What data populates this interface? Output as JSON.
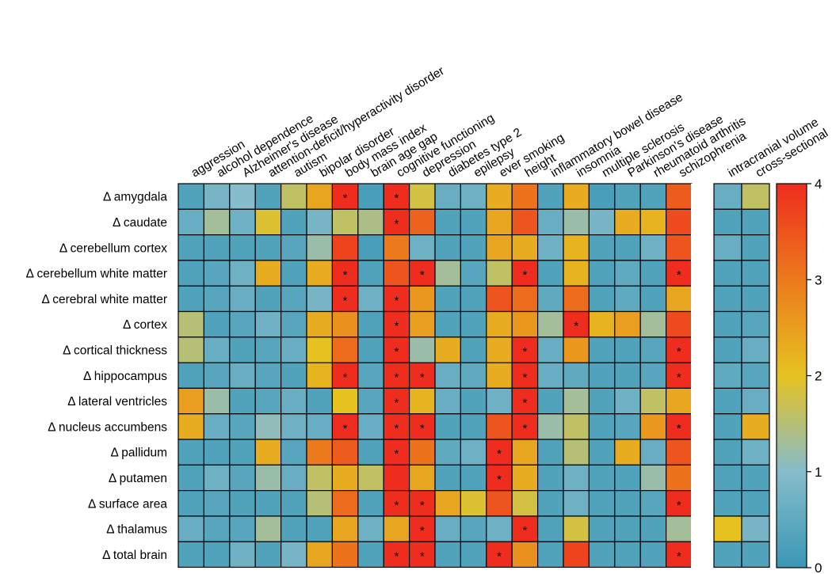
{
  "chart_data": {
    "type": "heatmap",
    "x_labels": [
      "aggression",
      "alcohol dependence",
      "Alzheimer's disease",
      "attention-deficit/hyperactivity disorder",
      "autism",
      "bipolar disorder",
      "body mass index",
      "brain age gap",
      "cognitive functioning",
      "depression",
      "diabetes type 2",
      "epilepsy",
      "ever smoking",
      "height",
      "inflammatory bowel disease",
      "insomnia",
      "multiple sclerosis",
      "Parkinson's disease",
      "rheumatoid arthritis",
      "schizophrenia"
    ],
    "extra_labels": [
      "intracranial volume",
      "cross-sectional"
    ],
    "y_labels": [
      "Δ amygdala",
      "Δ caudate",
      "Δ cerebellum cortex",
      "Δ cerebellum white matter",
      "Δ cerebral white matter",
      "Δ cortex",
      "Δ cortical thickness",
      "Δ hippocampus",
      "Δ lateral ventricles",
      "Δ nucleus accumbens",
      "Δ pallidum",
      "Δ putamen",
      "Δ surface area",
      "Δ thalamus",
      "Δ total brain"
    ],
    "values": [
      [
        0.3,
        0.8,
        1.0,
        0.3,
        1.6,
        2.4,
        4.0,
        0.2,
        4.0,
        1.8,
        0.6,
        0.7,
        2.3,
        3.1,
        0.3,
        2.3,
        0.2,
        0.3,
        0.3,
        3.4
      ],
      [
        0.6,
        1.3,
        0.7,
        1.9,
        0.3,
        0.8,
        1.6,
        1.4,
        4.0,
        3.3,
        0.3,
        0.3,
        2.4,
        3.5,
        0.6,
        1.2,
        0.8,
        2.3,
        2.2,
        3.6
      ],
      [
        0.3,
        0.3,
        0.3,
        0.3,
        0.4,
        1.2,
        3.7,
        0.2,
        3.0,
        0.7,
        0.3,
        0.3,
        2.4,
        2.3,
        0.7,
        2.2,
        0.3,
        0.3,
        0.7,
        3.5
      ],
      [
        0.3,
        0.4,
        0.7,
        2.3,
        0.3,
        2.3,
        4.0,
        0.3,
        3.5,
        4.0,
        1.3,
        0.4,
        1.6,
        4.0,
        0.3,
        2.2,
        0.3,
        0.5,
        0.3,
        4.0
      ],
      [
        0.3,
        0.4,
        0.6,
        0.3,
        0.4,
        0.8,
        4.0,
        0.7,
        4.0,
        2.6,
        0.3,
        0.3,
        3.5,
        3.2,
        0.5,
        3.2,
        0.3,
        0.5,
        0.3,
        2.4
      ],
      [
        1.5,
        0.3,
        0.4,
        0.7,
        0.4,
        2.3,
        2.7,
        0.3,
        4.0,
        2.5,
        0.3,
        0.3,
        2.3,
        2.6,
        1.3,
        4.0,
        2.2,
        2.5,
        1.3,
        3.6
      ],
      [
        1.5,
        0.6,
        0.3,
        0.4,
        0.6,
        2.0,
        3.2,
        0.3,
        4.0,
        1.2,
        2.3,
        0.3,
        2.3,
        4.0,
        0.6,
        2.6,
        0.3,
        0.3,
        0.4,
        4.0
      ],
      [
        0.3,
        0.4,
        0.6,
        0.4,
        0.3,
        2.2,
        4.0,
        0.4,
        4.0,
        4.0,
        0.6,
        0.5,
        2.3,
        4.0,
        0.6,
        0.5,
        0.3,
        0.3,
        0.4,
        4.0
      ],
      [
        2.5,
        1.2,
        0.3,
        0.4,
        0.6,
        0.3,
        2.0,
        0.4,
        4.0,
        2.2,
        0.6,
        0.3,
        0.7,
        4.0,
        0.3,
        1.3,
        0.3,
        0.7,
        1.6,
        2.4
      ],
      [
        2.3,
        0.6,
        0.4,
        1.1,
        0.7,
        0.6,
        4.0,
        0.6,
        4.0,
        4.0,
        0.3,
        0.3,
        3.5,
        4.0,
        1.2,
        1.6,
        0.3,
        0.4,
        2.6,
        4.0
      ],
      [
        0.3,
        0.3,
        0.3,
        2.3,
        0.4,
        3.0,
        3.4,
        0.3,
        4.0,
        3.1,
        0.5,
        0.7,
        4.0,
        2.4,
        0.3,
        1.5,
        0.3,
        2.3,
        0.6,
        3.5
      ],
      [
        0.3,
        0.7,
        0.4,
        1.2,
        0.6,
        1.6,
        2.3,
        1.6,
        4.0,
        2.4,
        0.3,
        0.3,
        4.0,
        2.3,
        0.3,
        0.7,
        0.3,
        0.3,
        1.2,
        3.1
      ],
      [
        0.3,
        0.4,
        0.3,
        0.3,
        0.3,
        1.5,
        3.2,
        0.3,
        4.0,
        4.0,
        2.4,
        1.9,
        3.5,
        1.8,
        0.3,
        0.7,
        0.3,
        0.3,
        0.4,
        4.0
      ],
      [
        0.6,
        0.4,
        0.4,
        1.3,
        0.3,
        0.3,
        2.4,
        0.7,
        2.4,
        4.0,
        0.6,
        0.4,
        0.7,
        4.0,
        0.3,
        1.8,
        0.3,
        0.3,
        0.3,
        1.3
      ],
      [
        0.3,
        0.3,
        0.7,
        0.3,
        0.8,
        2.4,
        3.1,
        0.3,
        4.0,
        4.0,
        0.3,
        0.3,
        4.0,
        2.7,
        0.3,
        3.7,
        0.3,
        0.3,
        0.3,
        4.0
      ]
    ],
    "extra_values": [
      [
        0.6,
        1.6
      ],
      [
        0.3,
        0.3
      ],
      [
        0.6,
        0.3
      ],
      [
        0.3,
        0.3
      ],
      [
        0.3,
        0.3
      ],
      [
        0.3,
        0.4
      ],
      [
        0.3,
        0.6
      ],
      [
        0.5,
        0.4
      ],
      [
        0.3,
        0.6
      ],
      [
        0.3,
        2.3
      ],
      [
        0.3,
        0.7
      ],
      [
        0.3,
        0.3
      ],
      [
        0.3,
        0.3
      ],
      [
        2.0,
        0.8
      ],
      [
        0.3,
        0.3
      ]
    ],
    "significant": [
      [
        0,
        6
      ],
      [
        0,
        8
      ],
      [
        1,
        8
      ],
      [
        3,
        6
      ],
      [
        3,
        9
      ],
      [
        3,
        13
      ],
      [
        3,
        19
      ],
      [
        4,
        6
      ],
      [
        4,
        8
      ],
      [
        5,
        8
      ],
      [
        5,
        15
      ],
      [
        6,
        8
      ],
      [
        6,
        13
      ],
      [
        6,
        19
      ],
      [
        7,
        6
      ],
      [
        7,
        8
      ],
      [
        7,
        9
      ],
      [
        7,
        13
      ],
      [
        7,
        19
      ],
      [
        8,
        8
      ],
      [
        8,
        13
      ],
      [
        9,
        6
      ],
      [
        9,
        8
      ],
      [
        9,
        9
      ],
      [
        9,
        13
      ],
      [
        9,
        19
      ],
      [
        10,
        8
      ],
      [
        10,
        12
      ],
      [
        11,
        12
      ],
      [
        12,
        8
      ],
      [
        12,
        9
      ],
      [
        12,
        19
      ],
      [
        13,
        9
      ],
      [
        13,
        13
      ],
      [
        14,
        8
      ],
      [
        14,
        9
      ],
      [
        14,
        12
      ],
      [
        14,
        19
      ]
    ],
    "significance_marker": "*",
    "colorbar": {
      "min": 0,
      "max": 4,
      "ticks": [
        "0",
        "1",
        "2",
        "3",
        "4"
      ]
    },
    "colors": [
      "#3a97b4",
      "#86bccb",
      "#e6c221",
      "#ec7a1c",
      "#ef2d1f"
    ]
  }
}
